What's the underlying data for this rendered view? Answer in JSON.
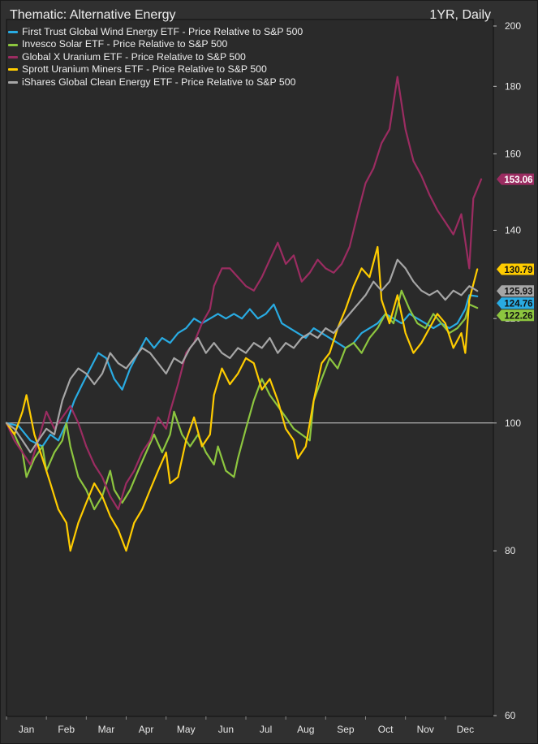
{
  "title": "Thematic: Alternative Energy",
  "period": "1YR, Daily",
  "chart_data": {
    "type": "line",
    "title": "Thematic: Alternative Energy",
    "xlabel": "",
    "ylabel": "",
    "y_scale": "log",
    "ylim": [
      60,
      200
    ],
    "yticks": [
      60,
      80,
      100,
      120,
      140,
      160,
      180,
      200
    ],
    "reference_line": 100,
    "grid": false,
    "legend_position": "top-left",
    "x_months": [
      "Jan",
      "Feb",
      "Mar",
      "Apr",
      "May",
      "Jun",
      "Jul",
      "Aug",
      "Sep",
      "Oct",
      "Nov",
      "Dec"
    ],
    "x_range": [
      0,
      12
    ],
    "series": [
      {
        "name": "First Trust Global Wind Energy ETF - Price Relative to S&P 500",
        "color": "#29abe2",
        "last_label": "124.76",
        "points": [
          [
            0,
            100
          ],
          [
            0.3,
            99.5
          ],
          [
            0.6,
            97
          ],
          [
            0.9,
            96
          ],
          [
            1.1,
            98
          ],
          [
            1.3,
            97
          ],
          [
            1.5,
            100
          ],
          [
            1.7,
            104
          ],
          [
            1.9,
            107
          ],
          [
            2.1,
            110
          ],
          [
            2.3,
            113
          ],
          [
            2.5,
            112
          ],
          [
            2.7,
            108
          ],
          [
            2.9,
            106
          ],
          [
            3.1,
            110
          ],
          [
            3.3,
            113
          ],
          [
            3.5,
            116
          ],
          [
            3.7,
            114
          ],
          [
            3.9,
            116
          ],
          [
            4.1,
            115
          ],
          [
            4.3,
            117
          ],
          [
            4.5,
            118
          ],
          [
            4.7,
            120
          ],
          [
            4.9,
            119
          ],
          [
            5.1,
            120
          ],
          [
            5.3,
            121
          ],
          [
            5.5,
            120
          ],
          [
            5.7,
            121
          ],
          [
            5.9,
            120
          ],
          [
            6.1,
            122
          ],
          [
            6.3,
            120
          ],
          [
            6.5,
            121
          ],
          [
            6.7,
            123
          ],
          [
            6.9,
            119
          ],
          [
            7.1,
            118
          ],
          [
            7.3,
            117
          ],
          [
            7.5,
            116
          ],
          [
            7.7,
            118
          ],
          [
            7.9,
            117
          ],
          [
            8.1,
            116
          ],
          [
            8.3,
            115
          ],
          [
            8.5,
            114
          ],
          [
            8.7,
            115
          ],
          [
            8.9,
            117
          ],
          [
            9.1,
            118
          ],
          [
            9.3,
            119
          ],
          [
            9.5,
            121
          ],
          [
            9.7,
            120
          ],
          [
            9.9,
            119
          ],
          [
            10.1,
            121
          ],
          [
            10.3,
            120
          ],
          [
            10.5,
            119
          ],
          [
            10.7,
            118
          ],
          [
            10.9,
            119
          ],
          [
            11.1,
            118
          ],
          [
            11.3,
            119
          ],
          [
            11.5,
            122
          ],
          [
            11.6,
            125
          ],
          [
            11.8,
            124.76
          ]
        ]
      },
      {
        "name": "Invesco Solar ETF - Price Relative to S&P 500",
        "color": "#8dc63f",
        "last_label": "122.26",
        "points": [
          [
            0,
            100
          ],
          [
            0.2,
            98
          ],
          [
            0.4,
            95
          ],
          [
            0.5,
            91
          ],
          [
            0.7,
            94
          ],
          [
            0.9,
            96
          ],
          [
            1.0,
            92
          ],
          [
            1.2,
            95
          ],
          [
            1.4,
            97
          ],
          [
            1.5,
            100
          ],
          [
            1.6,
            96
          ],
          [
            1.8,
            91
          ],
          [
            2.0,
            89
          ],
          [
            2.2,
            86
          ],
          [
            2.4,
            88
          ],
          [
            2.6,
            92
          ],
          [
            2.7,
            89
          ],
          [
            2.9,
            87
          ],
          [
            3.1,
            89
          ],
          [
            3.3,
            92
          ],
          [
            3.5,
            95
          ],
          [
            3.7,
            98
          ],
          [
            3.9,
            95
          ],
          [
            4.1,
            98
          ],
          [
            4.2,
            102
          ],
          [
            4.4,
            98
          ],
          [
            4.6,
            96
          ],
          [
            4.8,
            98
          ],
          [
            5.0,
            95
          ],
          [
            5.2,
            93
          ],
          [
            5.3,
            96
          ],
          [
            5.5,
            92
          ],
          [
            5.7,
            91
          ],
          [
            5.8,
            94
          ],
          [
            6.0,
            99
          ],
          [
            6.2,
            104
          ],
          [
            6.4,
            108
          ],
          [
            6.6,
            105
          ],
          [
            6.8,
            103
          ],
          [
            7.0,
            101
          ],
          [
            7.2,
            99
          ],
          [
            7.4,
            98
          ],
          [
            7.6,
            97
          ],
          [
            7.7,
            104
          ],
          [
            7.9,
            108
          ],
          [
            8.1,
            112
          ],
          [
            8.3,
            110
          ],
          [
            8.5,
            114
          ],
          [
            8.7,
            115
          ],
          [
            8.9,
            113
          ],
          [
            9.1,
            116
          ],
          [
            9.3,
            118
          ],
          [
            9.5,
            121
          ],
          [
            9.7,
            119
          ],
          [
            9.9,
            126
          ],
          [
            10.1,
            122
          ],
          [
            10.3,
            119
          ],
          [
            10.5,
            118
          ],
          [
            10.7,
            121
          ],
          [
            10.9,
            119
          ],
          [
            11.1,
            117
          ],
          [
            11.3,
            118
          ],
          [
            11.5,
            120
          ],
          [
            11.6,
            123
          ],
          [
            11.8,
            122.26
          ]
        ]
      },
      {
        "name": "Global X Uranium ETF - Price Relative to S&P 500",
        "color": "#9b2c61",
        "last_label": "153.06",
        "points": [
          [
            0,
            100
          ],
          [
            0.2,
            97
          ],
          [
            0.4,
            95
          ],
          [
            0.6,
            93
          ],
          [
            0.8,
            97
          ],
          [
            1.0,
            102
          ],
          [
            1.2,
            99
          ],
          [
            1.4,
            101
          ],
          [
            1.6,
            103
          ],
          [
            1.8,
            100
          ],
          [
            2.0,
            96
          ],
          [
            2.2,
            93
          ],
          [
            2.4,
            91
          ],
          [
            2.6,
            88
          ],
          [
            2.8,
            86
          ],
          [
            3.0,
            90
          ],
          [
            3.2,
            92
          ],
          [
            3.4,
            95
          ],
          [
            3.6,
            97
          ],
          [
            3.8,
            101
          ],
          [
            4.0,
            99
          ],
          [
            4.1,
            102
          ],
          [
            4.3,
            107
          ],
          [
            4.5,
            113
          ],
          [
            4.7,
            115
          ],
          [
            4.9,
            119
          ],
          [
            5.1,
            122
          ],
          [
            5.2,
            127
          ],
          [
            5.4,
            131
          ],
          [
            5.6,
            131
          ],
          [
            5.8,
            129
          ],
          [
            6.0,
            127
          ],
          [
            6.2,
            126
          ],
          [
            6.4,
            129
          ],
          [
            6.6,
            133
          ],
          [
            6.8,
            137
          ],
          [
            7.0,
            132
          ],
          [
            7.2,
            134
          ],
          [
            7.4,
            128
          ],
          [
            7.6,
            130
          ],
          [
            7.8,
            133
          ],
          [
            8.0,
            131
          ],
          [
            8.2,
            130
          ],
          [
            8.4,
            132
          ],
          [
            8.6,
            136
          ],
          [
            8.8,
            144
          ],
          [
            9.0,
            152
          ],
          [
            9.2,
            156
          ],
          [
            9.4,
            163
          ],
          [
            9.6,
            167
          ],
          [
            9.8,
            183
          ],
          [
            10.0,
            167
          ],
          [
            10.2,
            158
          ],
          [
            10.4,
            154
          ],
          [
            10.6,
            149
          ],
          [
            10.8,
            145
          ],
          [
            11.0,
            142
          ],
          [
            11.2,
            139
          ],
          [
            11.4,
            144
          ],
          [
            11.6,
            131
          ],
          [
            11.7,
            148
          ],
          [
            11.9,
            153.06
          ]
        ]
      },
      {
        "name": "Sprott Uranium Miners ETF - Price Relative to S&P 500",
        "color": "#ffcc00",
        "last_label": "130.79",
        "points": [
          [
            0,
            100
          ],
          [
            0.2,
            98
          ],
          [
            0.4,
            102
          ],
          [
            0.5,
            105
          ],
          [
            0.7,
            98
          ],
          [
            0.9,
            94
          ],
          [
            1.1,
            90
          ],
          [
            1.3,
            86
          ],
          [
            1.5,
            84
          ],
          [
            1.6,
            80
          ],
          [
            1.8,
            84
          ],
          [
            2.0,
            87
          ],
          [
            2.2,
            90
          ],
          [
            2.4,
            88
          ],
          [
            2.6,
            85
          ],
          [
            2.8,
            83
          ],
          [
            3.0,
            80
          ],
          [
            3.2,
            84
          ],
          [
            3.4,
            86
          ],
          [
            3.6,
            89
          ],
          [
            3.8,
            92
          ],
          [
            4.0,
            95
          ],
          [
            4.1,
            90
          ],
          [
            4.3,
            91
          ],
          [
            4.5,
            97
          ],
          [
            4.7,
            101
          ],
          [
            4.9,
            96
          ],
          [
            5.1,
            98
          ],
          [
            5.2,
            105
          ],
          [
            5.4,
            110
          ],
          [
            5.6,
            107
          ],
          [
            5.8,
            109
          ],
          [
            6.0,
            112
          ],
          [
            6.2,
            111
          ],
          [
            6.4,
            106
          ],
          [
            6.6,
            108
          ],
          [
            6.8,
            104
          ],
          [
            7.0,
            99
          ],
          [
            7.2,
            97
          ],
          [
            7.3,
            94
          ],
          [
            7.5,
            96
          ],
          [
            7.7,
            104
          ],
          [
            7.9,
            111
          ],
          [
            8.1,
            113
          ],
          [
            8.3,
            118
          ],
          [
            8.5,
            122
          ],
          [
            8.7,
            127
          ],
          [
            8.9,
            131
          ],
          [
            9.1,
            129
          ],
          [
            9.3,
            136
          ],
          [
            9.4,
            124
          ],
          [
            9.6,
            119
          ],
          [
            9.8,
            125
          ],
          [
            10.0,
            117
          ],
          [
            10.2,
            113
          ],
          [
            10.4,
            115
          ],
          [
            10.6,
            118
          ],
          [
            10.8,
            121
          ],
          [
            11.0,
            119
          ],
          [
            11.2,
            114
          ],
          [
            11.4,
            117
          ],
          [
            11.5,
            113
          ],
          [
            11.6,
            124
          ],
          [
            11.8,
            130.79
          ]
        ]
      },
      {
        "name": "iShares Global Clean Energy ETF - Price Relative to S&P 500",
        "color": "#a6a6a6",
        "last_label": "125.93",
        "points": [
          [
            0,
            100
          ],
          [
            0.2,
            99
          ],
          [
            0.4,
            97
          ],
          [
            0.6,
            95
          ],
          [
            0.8,
            97
          ],
          [
            1.0,
            99
          ],
          [
            1.2,
            98
          ],
          [
            1.4,
            104
          ],
          [
            1.6,
            108
          ],
          [
            1.8,
            110
          ],
          [
            2.0,
            109
          ],
          [
            2.2,
            107
          ],
          [
            2.4,
            109
          ],
          [
            2.6,
            113
          ],
          [
            2.8,
            111
          ],
          [
            3.0,
            110
          ],
          [
            3.2,
            112
          ],
          [
            3.4,
            114
          ],
          [
            3.6,
            113
          ],
          [
            3.8,
            111
          ],
          [
            4.0,
            109
          ],
          [
            4.2,
            112
          ],
          [
            4.4,
            111
          ],
          [
            4.6,
            114
          ],
          [
            4.8,
            116
          ],
          [
            5.0,
            113
          ],
          [
            5.2,
            115
          ],
          [
            5.4,
            113
          ],
          [
            5.6,
            112
          ],
          [
            5.8,
            114
          ],
          [
            6.0,
            113
          ],
          [
            6.2,
            115
          ],
          [
            6.4,
            114
          ],
          [
            6.6,
            116
          ],
          [
            6.8,
            113
          ],
          [
            7.0,
            115
          ],
          [
            7.2,
            114
          ],
          [
            7.4,
            116
          ],
          [
            7.6,
            117
          ],
          [
            7.8,
            116
          ],
          [
            8.0,
            118
          ],
          [
            8.2,
            117
          ],
          [
            8.4,
            119
          ],
          [
            8.6,
            121
          ],
          [
            8.8,
            123
          ],
          [
            9.0,
            125
          ],
          [
            9.2,
            128
          ],
          [
            9.4,
            126
          ],
          [
            9.6,
            128
          ],
          [
            9.8,
            133
          ],
          [
            10.0,
            131
          ],
          [
            10.2,
            128
          ],
          [
            10.4,
            126
          ],
          [
            10.6,
            125
          ],
          [
            10.8,
            126
          ],
          [
            11.0,
            124
          ],
          [
            11.2,
            126
          ],
          [
            11.4,
            125
          ],
          [
            11.6,
            127
          ],
          [
            11.8,
            125.93
          ]
        ]
      }
    ]
  }
}
